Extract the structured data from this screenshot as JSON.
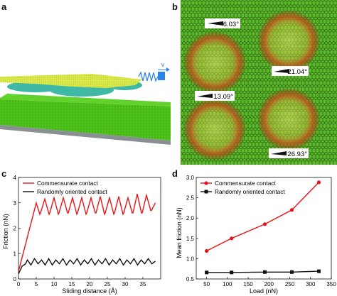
{
  "panels": {
    "a": {
      "letter": "a",
      "spring_label": "v"
    },
    "b": {
      "letter": "b",
      "angles": [
        "6.03°",
        "21.04°",
        "13.09°",
        "26.93°"
      ]
    },
    "c": {
      "letter": "c"
    },
    "d": {
      "letter": "d"
    }
  },
  "colors": {
    "red": "#e8141b",
    "black": "#111111",
    "green_substrate": "#4ec21b",
    "yellow_flake": "#d9e94c",
    "teal_bubble": "#3fb8a6",
    "blue_spring": "#2f84e8",
    "gray_base": "#8a8f94"
  },
  "chart_data": [
    {
      "type": "line",
      "panel": "c",
      "xlabel": "Sliding distance (Å)",
      "ylabel": "Friction (nN)",
      "xlim": [
        0,
        40
      ],
      "ylim": [
        0,
        4
      ],
      "xticks": [
        0,
        5,
        10,
        15,
        20,
        25,
        30,
        35
      ],
      "yticks": [
        0,
        1,
        2,
        3,
        4
      ],
      "legend_position": "top-left",
      "series": [
        {
          "name": "Commensurate contact",
          "color": "#e8141b",
          "x": [
            0,
            5,
            6,
            6.2,
            7.4,
            8.6,
            8.8,
            10.0,
            11.2,
            11.4,
            12.6,
            13.8,
            14.0,
            15.2,
            16.4,
            16.6,
            17.8,
            19.0,
            19.2,
            20.4,
            21.6,
            21.8,
            23.0,
            24.2,
            24.4,
            25.6,
            26.8,
            27.0,
            28.2,
            29.4,
            29.6,
            30.8,
            32.0,
            32.2,
            33.4,
            34.6,
            34.8,
            36.0,
            37.2,
            37.4,
            38.5
          ],
          "y": [
            0.3,
            3.0,
            2.55,
            2.6,
            3.15,
            2.55,
            2.6,
            3.2,
            2.55,
            2.6,
            3.2,
            2.6,
            2.6,
            3.2,
            2.55,
            2.6,
            3.2,
            2.55,
            2.6,
            3.2,
            2.6,
            2.6,
            3.25,
            2.55,
            2.6,
            3.2,
            2.55,
            2.6,
            3.25,
            2.55,
            2.6,
            3.2,
            2.6,
            2.6,
            3.35,
            2.6,
            2.6,
            3.3,
            2.7,
            2.7,
            3.0
          ]
        },
        {
          "name": "Randomly oriented contact",
          "color": "#111111",
          "x": [
            0,
            1,
            2,
            2.5,
            3.5,
            4.5,
            5.5,
            6.5,
            7.5,
            8.5,
            9.5,
            10.5,
            11.5,
            12.5,
            13.5,
            14.5,
            15.5,
            16.5,
            17.5,
            18.5,
            19.5,
            20.5,
            21.5,
            22.5,
            23.5,
            24.5,
            25.5,
            26.5,
            27.5,
            28.5,
            29.5,
            30.5,
            31.5,
            32.5,
            33.5,
            34.5,
            35.5,
            36.5,
            37.5,
            38.5
          ],
          "y": [
            0.2,
            0.5,
            0.6,
            0.75,
            0.55,
            0.8,
            0.6,
            0.75,
            0.55,
            0.8,
            0.55,
            0.75,
            0.6,
            0.8,
            0.55,
            0.75,
            0.6,
            0.8,
            0.55,
            0.75,
            0.6,
            0.8,
            0.55,
            0.75,
            0.6,
            0.8,
            0.55,
            0.75,
            0.6,
            0.8,
            0.55,
            0.75,
            0.6,
            0.8,
            0.55,
            0.75,
            0.6,
            0.8,
            0.6,
            0.7
          ]
        }
      ]
    },
    {
      "type": "line",
      "panel": "d",
      "xlabel": "Load (nN)",
      "ylabel": "Mean friction (nN)",
      "xlim": [
        25,
        350
      ],
      "ylim": [
        0.5,
        3.0
      ],
      "xticks": [
        50,
        100,
        150,
        200,
        250,
        300,
        350
      ],
      "yticks": [
        0.5,
        1.0,
        1.5,
        2.0,
        2.5,
        3.0
      ],
      "legend_position": "top-left",
      "series": [
        {
          "name": "Commensurate contact",
          "color": "#e8141b",
          "marker": "circle",
          "x": [
            50,
            110,
            190,
            255,
            320
          ],
          "y": [
            1.19,
            1.5,
            1.85,
            2.2,
            2.88
          ]
        },
        {
          "name": "Randomly oriented contact",
          "color": "#111111",
          "marker": "square",
          "x": [
            50,
            110,
            190,
            255,
            320
          ],
          "y": [
            0.66,
            0.66,
            0.67,
            0.67,
            0.69
          ]
        }
      ]
    }
  ]
}
